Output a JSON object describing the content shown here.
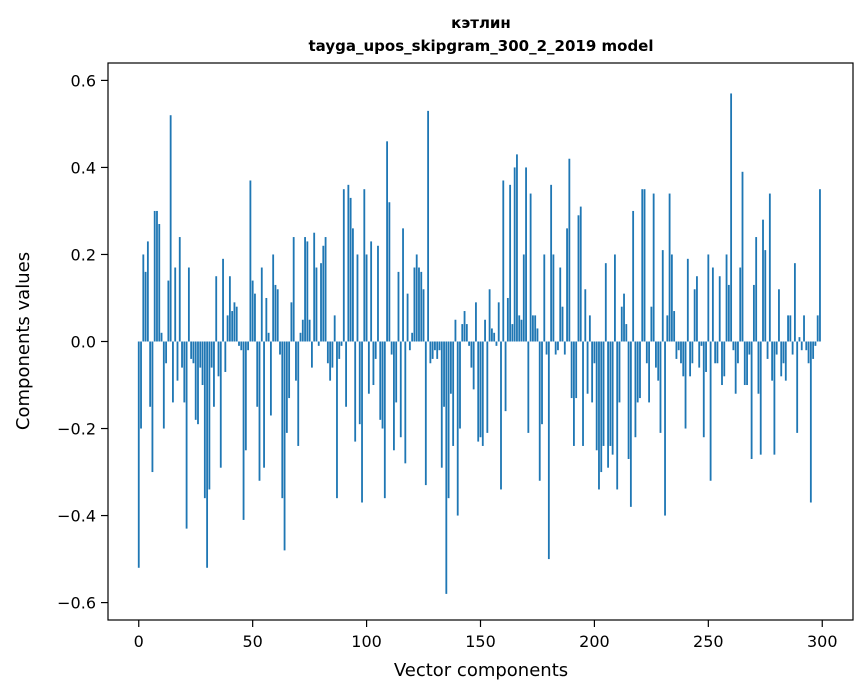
{
  "chart_data": {
    "type": "bar",
    "title": "кэтлин",
    "subtitle": "tayga_upos_skipgram_300_2_2019 model",
    "xlabel": "Vector components",
    "ylabel": "Components values",
    "xlim": [
      -13.5,
      313.5
    ],
    "ylim": [
      -0.64,
      0.64
    ],
    "xticks": [
      0,
      50,
      100,
      150,
      200,
      250,
      300
    ],
    "xtick_labels": [
      "0",
      "50",
      "100",
      "150",
      "200",
      "250",
      "300"
    ],
    "yticks": [
      -0.6,
      -0.4,
      -0.2,
      0.0,
      0.2,
      0.4,
      0.6
    ],
    "ytick_labels": [
      "−0.6",
      "−0.4",
      "−0.2",
      "0.0",
      "0.2",
      "0.4",
      "0.6"
    ],
    "grid": false,
    "bar_color": "#1f77b4",
    "values": [
      -0.52,
      -0.2,
      0.2,
      0.16,
      0.23,
      -0.15,
      -0.3,
      0.3,
      0.3,
      0.27,
      0.02,
      -0.2,
      -0.05,
      0.14,
      0.52,
      -0.14,
      0.17,
      -0.09,
      0.24,
      -0.06,
      -0.14,
      -0.43,
      0.17,
      -0.04,
      -0.05,
      -0.18,
      -0.19,
      -0.06,
      -0.1,
      -0.36,
      -0.52,
      -0.34,
      -0.06,
      -0.15,
      0.15,
      -0.08,
      -0.29,
      0.19,
      -0.07,
      0.06,
      0.15,
      0.07,
      0.09,
      0.08,
      -0.01,
      -0.02,
      -0.41,
      -0.25,
      -0.02,
      0.37,
      0.14,
      0.11,
      -0.15,
      -0.32,
      0.17,
      -0.29,
      0.1,
      0.02,
      -0.17,
      0.2,
      0.13,
      0.12,
      -0.03,
      -0.36,
      -0.48,
      -0.21,
      -0.13,
      0.09,
      0.24,
      -0.09,
      -0.24,
      0.02,
      0.05,
      0.24,
      0.23,
      0.05,
      -0.06,
      0.25,
      0.17,
      -0.01,
      0.18,
      0.22,
      0.24,
      -0.05,
      -0.09,
      -0.06,
      0.06,
      -0.36,
      -0.04,
      -0.01,
      0.35,
      -0.15,
      0.36,
      0.33,
      0.26,
      -0.23,
      0.2,
      -0.19,
      -0.37,
      0.35,
      0.2,
      -0.12,
      0.23,
      -0.1,
      -0.04,
      0.22,
      -0.18,
      -0.2,
      -0.36,
      0.46,
      0.32,
      -0.03,
      -0.25,
      -0.14,
      0.16,
      -0.22,
      0.26,
      -0.28,
      0.11,
      -0.02,
      0.02,
      0.17,
      0.2,
      0.17,
      0.16,
      0.12,
      -0.33,
      0.53,
      -0.05,
      -0.04,
      -0.02,
      -0.04,
      -0.02,
      -0.29,
      -0.15,
      -0.58,
      -0.36,
      -0.12,
      -0.24,
      0.05,
      -0.4,
      -0.2,
      0.04,
      0.07,
      0.04,
      -0.01,
      -0.06,
      -0.11,
      0.09,
      -0.23,
      -0.22,
      -0.24,
      0.05,
      -0.21,
      0.12,
      0.03,
      0.02,
      -0.01,
      0.09,
      -0.34,
      0.37,
      -0.16,
      0.1,
      0.36,
      0.04,
      0.4,
      0.43,
      0.06,
      0.05,
      0.2,
      0.4,
      -0.21,
      0.34,
      0.06,
      0.06,
      0.03,
      -0.32,
      -0.19,
      0.2,
      -0.03,
      -0.5,
      0.36,
      0.2,
      -0.03,
      -0.02,
      0.17,
      0.08,
      -0.03,
      0.26,
      0.42,
      -0.13,
      -0.24,
      -0.13,
      0.29,
      0.31,
      -0.24,
      0.12,
      -0.12,
      0.06,
      -0.14,
      -0.05,
      -0.25,
      -0.34,
      -0.3,
      -0.24,
      0.18,
      -0.29,
      -0.24,
      -0.26,
      0.2,
      -0.34,
      -0.14,
      0.08,
      0.11,
      0.04,
      -0.27,
      -0.38,
      0.3,
      -0.22,
      -0.14,
      -0.13,
      0.35,
      0.35,
      -0.05,
      -0.14,
      0.08,
      0.34,
      -0.06,
      -0.09,
      -0.21,
      0.21,
      -0.4,
      0.06,
      0.34,
      0.2,
      0.07,
      -0.04,
      -0.02,
      -0.05,
      -0.08,
      -0.2,
      0.19,
      -0.08,
      -0.05,
      0.12,
      0.15,
      -0.06,
      -0.01,
      -0.22,
      -0.07,
      0.2,
      -0.32,
      0.17,
      -0.05,
      -0.05,
      0.15,
      -0.1,
      -0.08,
      0.2,
      0.13,
      0.57,
      -0.02,
      -0.12,
      -0.05,
      0.17,
      0.39,
      -0.1,
      -0.1,
      -0.03,
      -0.27,
      0.13,
      0.24,
      -0.12,
      -0.26,
      0.28,
      0.21,
      -0.04,
      0.34,
      -0.09,
      -0.26,
      -0.03,
      0.12,
      -0.08,
      -0.05,
      -0.09,
      0.06,
      0.06,
      -0.03,
      0.18,
      -0.21,
      0.01,
      -0.02,
      0.06,
      -0.02,
      -0.05,
      -0.37,
      -0.04,
      -0.01,
      0.06,
      0.35
    ]
  }
}
